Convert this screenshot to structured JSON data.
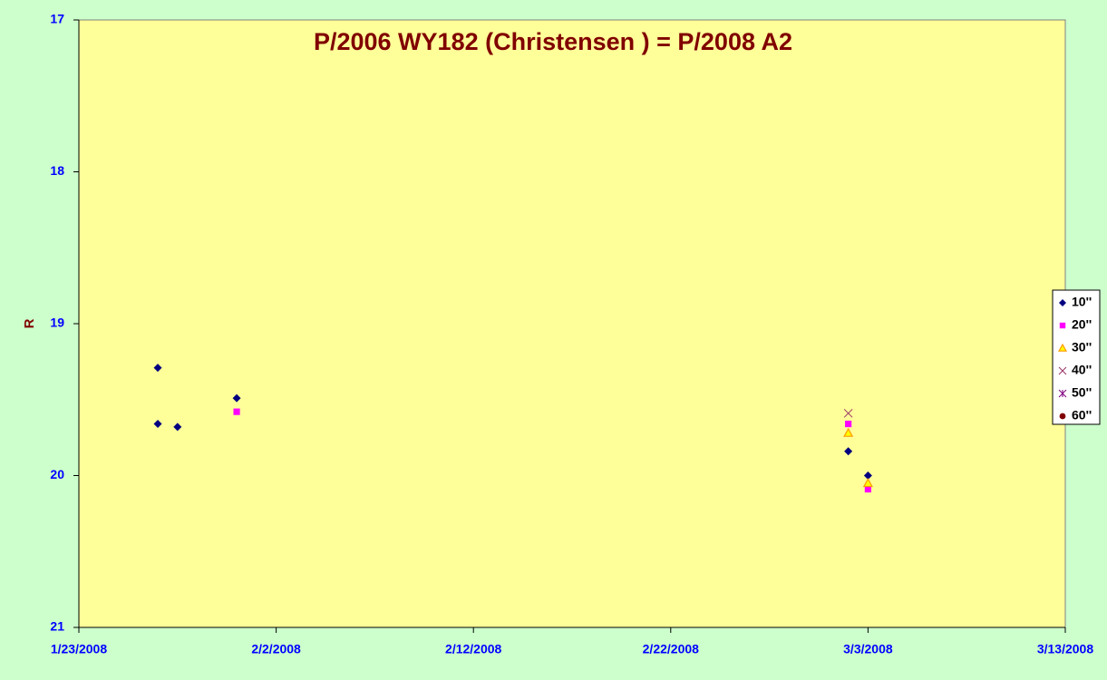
{
  "chart_data": {
    "type": "scatter",
    "title": "P/2006 WY182 (Christensen ) = P/2008 A2",
    "y_label": "R",
    "xlim": [
      "1/23/2008",
      "3/13/2008"
    ],
    "xticks": [
      "1/23/2008",
      "2/2/2008",
      "2/12/2008",
      "2/22/2008",
      "3/3/2008",
      "3/13/2008"
    ],
    "ylim": [
      17,
      21
    ],
    "yticks": [
      17,
      18,
      19,
      20,
      21
    ],
    "y_reversed": true,
    "legend": "right",
    "series": [
      {
        "name": "10''",
        "color": "#000080",
        "marker": "diamond",
        "x": [
          "1/27/2008",
          "1/27/2008",
          "1/28/2008",
          "1/31/2008",
          "3/2/2008",
          "3/3/2008"
        ],
        "values": [
          19.29,
          19.66,
          19.68,
          19.49,
          19.84,
          20.0
        ]
      },
      {
        "name": "20''",
        "color": "#ff00ff",
        "marker": "square",
        "x": [
          "1/31/2008",
          "3/2/2008",
          "3/3/2008"
        ],
        "values": [
          19.58,
          19.66,
          20.09
        ]
      },
      {
        "name": "30''",
        "color": "#ff9900",
        "marker": "triangle",
        "x": [
          "3/2/2008",
          "3/3/2008"
        ],
        "values": [
          19.72,
          20.05
        ]
      },
      {
        "name": "40''",
        "color": "#993366",
        "marker": "cross",
        "x": [
          "3/2/2008"
        ],
        "values": [
          19.59
        ]
      },
      {
        "name": "50''",
        "color": "#800080",
        "marker": "star",
        "x": [],
        "values": []
      },
      {
        "name": "60''",
        "color": "#800000",
        "marker": "circle",
        "x": [],
        "values": []
      }
    ]
  }
}
